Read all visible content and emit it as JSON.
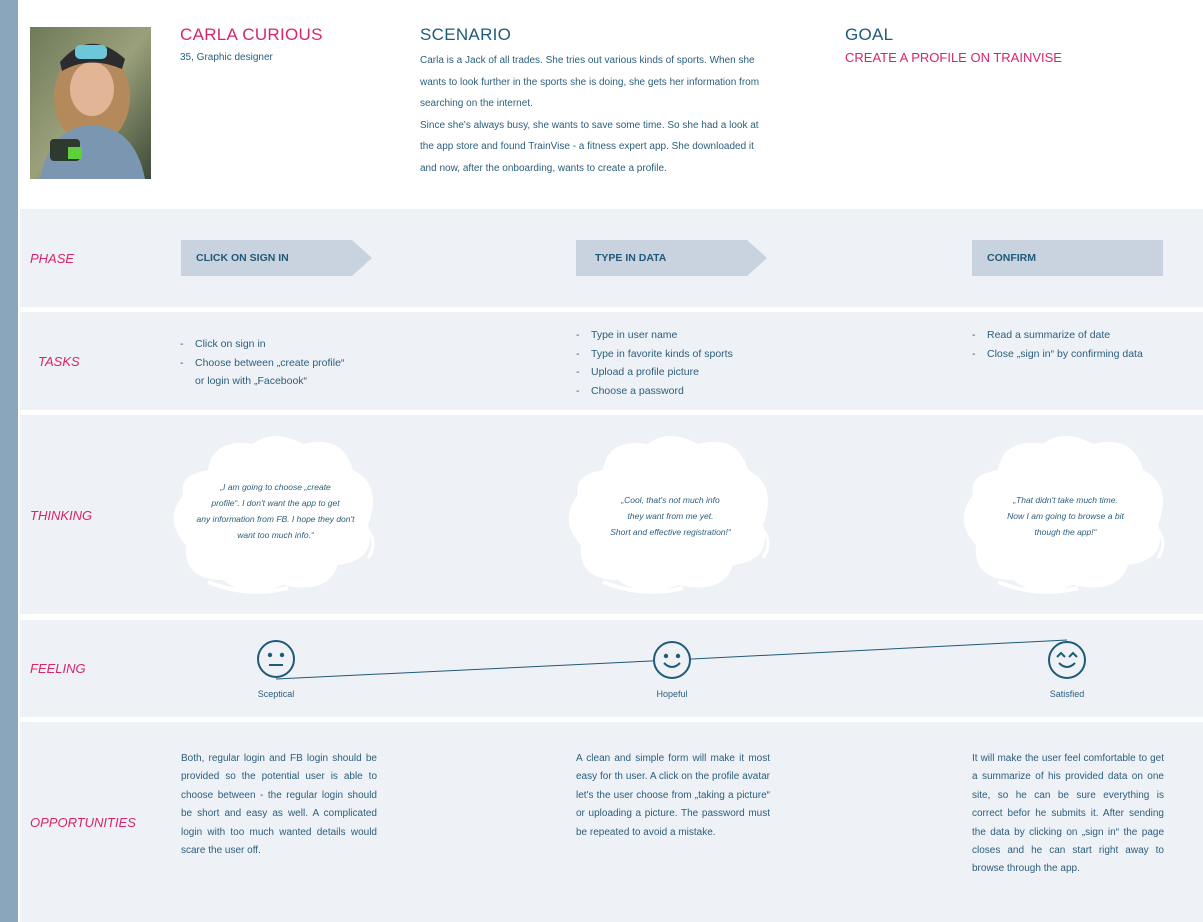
{
  "persona": {
    "name": "CARLA CURIOUS",
    "role": "35, Graphic designer",
    "photo_alt": "persona-photo"
  },
  "scenario": {
    "title": "SCENARIO",
    "paragraph1": "Carla is a Jack of all trades. She tries out various kinds of sports. When she wants to look further in the sports she is doing, she gets her information from searching on the internet.",
    "paragraph2": "Since she's always busy, she wants to save some time. So she had a look at the app store and found TrainVise - a fitness expert app. She downloaded it and now, after the onboarding, wants to create a profile."
  },
  "goal": {
    "title": "GOAL",
    "text": "CREATE A PROFILE ON TRAINVISE"
  },
  "rows": {
    "phase": "PHASE",
    "tasks": "TASKS",
    "thinking": "THINKING",
    "feeling": "FEELING",
    "opportunities": "OPPORTUNITIES"
  },
  "phases": [
    "CLICK ON SIGN IN",
    "TYPE IN DATA",
    "CONFIRM"
  ],
  "tasks": [
    [
      "Click on sign in",
      "Choose between „create profile“",
      "or login with „Facebook“"
    ],
    [
      "Type in user name",
      "Type in favorite kinds of sports",
      "Upload a profile picture",
      "Choose a password"
    ],
    [
      "Read a summarize of date",
      "Close „sign in“ by confirming data"
    ]
  ],
  "thinking": [
    [
      "„I am going to choose „create",
      "profile“. I don't want the app to get",
      "any information from FB. I hope they don't",
      "want too much info.“"
    ],
    [
      "„Cool, that's not much info",
      "they want from me yet.",
      "Short and effective registration!“"
    ],
    [
      "„That didn't take much time.",
      "Now I am going to browse a bit",
      "though the app!“"
    ]
  ],
  "feeling": [
    {
      "label": "Sceptical",
      "icon": "neutral-face-icon"
    },
    {
      "label": "Hopeful",
      "icon": "smile-face-icon"
    },
    {
      "label": "Satisfied",
      "icon": "happy-face-icon"
    }
  ],
  "opportunities": [
    "Both, regular login and FB login should be provided so the potential user is able to choose between - the regular login should be short and easy as well. A complicated login with too much wanted details would scare the user off.",
    "A clean and simple form will make it most easy for th user. A click on the profile avatar let's the user choose from „taking a picture“ or uploading a picture. The password must be repeated to avoid a mistake.",
    "It will make the user feel comfortable to get a summarize of his provided data on one site, so he can be sure everything is correct befor he submits it. After sending the data by clicking on „sign in“ the page closes and he can start right away to browse through the app."
  ],
  "colors": {
    "accent": "#d6256e",
    "primary": "#1f5a78",
    "band": "#eef1f6",
    "phase_fill": "#c9d3df",
    "sidebar": "#8aa6bd"
  }
}
